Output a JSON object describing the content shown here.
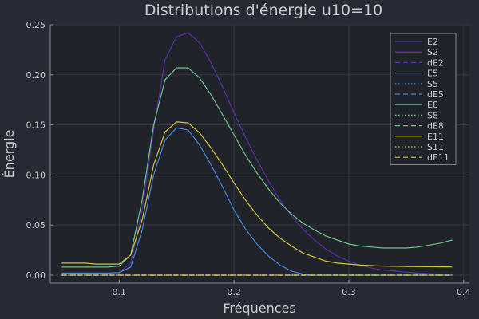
{
  "chart_data": {
    "type": "line",
    "title": "Distributions d'énergie u10=10",
    "xlabel": "Fréquences",
    "ylabel": "Énergie",
    "xlim": [
      0.04,
      0.405
    ],
    "ylim": [
      -0.008,
      0.25
    ],
    "xticks": [
      0.1,
      0.2,
      0.3,
      0.4
    ],
    "xtick_labels": [
      "0.1",
      "0.2",
      "0.3",
      "0.4"
    ],
    "yticks": [
      0.0,
      0.05,
      0.1,
      0.15,
      0.2,
      0.25
    ],
    "ytick_labels": [
      "0.00",
      "0.05",
      "0.10",
      "0.15",
      "0.20",
      "0.25"
    ],
    "grid": true,
    "legend_position": "top-right",
    "x": [
      0.05,
      0.06,
      0.07,
      0.08,
      0.09,
      0.1,
      0.11,
      0.12,
      0.13,
      0.14,
      0.15,
      0.16,
      0.17,
      0.18,
      0.19,
      0.2,
      0.21,
      0.22,
      0.23,
      0.24,
      0.25,
      0.26,
      0.27,
      0.28,
      0.29,
      0.3,
      0.31,
      0.32,
      0.33,
      0.34,
      0.35,
      0.36,
      0.37,
      0.38,
      0.39
    ],
    "series": [
      {
        "name": "E2",
        "color": "#5b2ea8",
        "dash": "solid",
        "values": [
          0.0015,
          0.0016,
          0.0017,
          0.0018,
          0.0019,
          0.0025,
          0.012,
          0.065,
          0.145,
          0.215,
          0.238,
          0.242,
          0.232,
          0.212,
          0.188,
          0.162,
          0.138,
          0.115,
          0.094,
          0.075,
          0.059,
          0.046,
          0.035,
          0.026,
          0.019,
          0.014,
          0.01,
          0.007,
          0.005,
          0.004,
          0.003,
          0.002,
          0.0015,
          0.001,
          0.001
        ]
      },
      {
        "name": "S2",
        "color": "#6a30b8",
        "dash": "solid",
        "values": [
          0.0,
          0.0,
          0.0,
          0.0,
          0.0,
          0.0,
          0.0,
          0.0,
          0.0,
          0.0,
          0.0,
          0.0,
          0.0,
          0.0,
          0.0,
          0.0,
          0.0,
          0.0,
          0.0,
          0.0,
          0.0,
          0.0,
          0.0,
          0.0,
          0.0,
          0.0,
          0.0,
          0.0,
          0.0,
          0.0,
          0.0,
          0.0,
          0.0,
          0.0,
          0.0
        ]
      },
      {
        "name": "dE2",
        "color": "#5b2ea8",
        "dash": "dash",
        "values": [
          0.0,
          0.0,
          0.0,
          0.0,
          0.0,
          0.0,
          0.0,
          0.0,
          0.0,
          0.0,
          0.0,
          0.0,
          0.0,
          0.0,
          0.0,
          0.0,
          0.0,
          0.0,
          0.0,
          0.0,
          0.0,
          0.0,
          0.0,
          0.0,
          0.0,
          0.0,
          0.0,
          0.0,
          0.0,
          0.0,
          0.0,
          0.0,
          0.0,
          0.0,
          0.0
        ]
      },
      {
        "name": "E5",
        "color": "#4a86d6",
        "dash": "solid",
        "values": [
          0.002,
          0.002,
          0.002,
          0.002,
          0.002,
          0.0025,
          0.008,
          0.045,
          0.1,
          0.135,
          0.147,
          0.145,
          0.13,
          0.11,
          0.088,
          0.065,
          0.046,
          0.031,
          0.019,
          0.01,
          0.004,
          0.001,
          0.0,
          0.0,
          0.0,
          0.0,
          0.0,
          0.0,
          0.0,
          0.0,
          0.0,
          0.0,
          0.0,
          0.0,
          0.0
        ]
      },
      {
        "name": "S5",
        "color": "#4a86d6",
        "dash": "dot",
        "values": [
          0.0,
          0.0,
          0.0,
          0.0,
          0.0,
          0.0,
          0.0,
          0.0,
          0.0,
          0.0,
          0.0,
          0.0,
          0.0,
          0.0,
          0.0,
          0.0,
          0.0,
          0.0,
          0.0,
          0.0,
          0.0,
          0.0,
          0.0,
          0.0,
          0.0,
          0.0,
          0.0,
          0.0,
          0.0,
          0.0,
          0.0,
          0.0,
          0.0,
          0.0,
          0.0
        ]
      },
      {
        "name": "dE5",
        "color": "#4a86d6",
        "dash": "dash",
        "values": [
          0.0,
          0.0,
          0.0,
          0.0,
          0.0,
          0.0,
          0.0,
          0.0,
          0.0,
          0.0,
          0.0,
          0.0,
          0.0,
          0.0,
          0.0,
          0.0,
          0.0,
          0.0,
          0.0,
          0.0,
          0.0,
          0.0,
          0.0,
          0.0,
          0.0,
          0.0,
          0.0,
          0.0,
          0.0,
          0.0,
          0.0,
          0.0,
          0.0,
          0.0,
          0.0
        ]
      },
      {
        "name": "E8",
        "color": "#6ec28a",
        "dash": "solid",
        "values": [
          0.008,
          0.008,
          0.008,
          0.008,
          0.008,
          0.009,
          0.02,
          0.075,
          0.15,
          0.195,
          0.207,
          0.207,
          0.197,
          0.18,
          0.16,
          0.14,
          0.12,
          0.102,
          0.086,
          0.072,
          0.061,
          0.052,
          0.045,
          0.039,
          0.035,
          0.031,
          0.029,
          0.028,
          0.027,
          0.027,
          0.027,
          0.028,
          0.03,
          0.032,
          0.035
        ]
      },
      {
        "name": "S8",
        "color": "#6ec28a",
        "dash": "dot",
        "values": [
          0.0,
          0.0,
          0.0,
          0.0,
          0.0,
          0.0,
          0.0,
          0.0,
          0.0,
          0.0,
          0.0,
          0.0,
          0.0,
          0.0,
          0.0,
          0.0,
          0.0,
          0.0,
          0.0,
          0.0,
          0.0,
          0.0,
          0.0,
          0.0,
          0.0,
          0.0,
          0.0,
          0.0,
          0.0,
          0.0,
          0.0,
          0.0,
          0.0,
          0.0,
          0.0
        ]
      },
      {
        "name": "dE8",
        "color": "#6ec28a",
        "dash": "dash",
        "values": [
          0.0,
          0.0,
          0.0,
          0.0,
          0.0,
          0.0,
          0.0,
          0.0,
          0.0,
          0.0,
          0.0,
          0.0,
          0.0,
          0.0,
          0.0,
          0.0,
          0.0,
          0.0,
          0.0,
          0.0,
          0.0,
          0.0,
          0.0,
          0.0,
          0.0,
          0.0,
          0.0,
          0.0,
          0.0,
          0.0,
          0.0,
          0.0,
          0.0,
          0.0,
          0.0
        ]
      },
      {
        "name": "E11",
        "color": "#d4c63a",
        "dash": "solid",
        "values": [
          0.012,
          0.012,
          0.012,
          0.011,
          0.011,
          0.011,
          0.02,
          0.055,
          0.11,
          0.143,
          0.153,
          0.152,
          0.142,
          0.127,
          0.11,
          0.092,
          0.075,
          0.06,
          0.047,
          0.037,
          0.029,
          0.022,
          0.018,
          0.014,
          0.012,
          0.011,
          0.01,
          0.0095,
          0.009,
          0.0088,
          0.0086,
          0.0085,
          0.0084,
          0.0083,
          0.0082
        ]
      },
      {
        "name": "S11",
        "color": "#d4c63a",
        "dash": "dot",
        "values": [
          0.0,
          0.0,
          0.0,
          0.0,
          0.0,
          0.0,
          0.0,
          0.0,
          0.0,
          0.0,
          0.0,
          0.0,
          0.0,
          0.0,
          0.0,
          0.0,
          0.0,
          0.0,
          0.0,
          0.0,
          0.0,
          0.0,
          0.0,
          0.0,
          0.0,
          0.0,
          0.0,
          0.0,
          0.0,
          0.0,
          0.0,
          0.0,
          0.0,
          0.0,
          0.0
        ]
      },
      {
        "name": "dE11",
        "color": "#d4c63a",
        "dash": "dash",
        "values": [
          0.0,
          0.0,
          0.0,
          0.0,
          0.0,
          0.0,
          0.0,
          0.0,
          0.0,
          0.0,
          0.0,
          0.0,
          0.0,
          0.0,
          0.0,
          0.0,
          0.0,
          0.0,
          0.0,
          0.0,
          0.0,
          0.0,
          0.0,
          0.0,
          0.0,
          0.0,
          0.0,
          0.0,
          0.0,
          0.0,
          0.0,
          0.0,
          0.0,
          0.0,
          0.0
        ]
      }
    ]
  },
  "colors": {
    "background": "#272a32",
    "plot_background": "#20232a",
    "grid": "#34373f",
    "axis": "#8a8d95",
    "text": "#c8cad0",
    "legend_border": "#8a8d95"
  }
}
